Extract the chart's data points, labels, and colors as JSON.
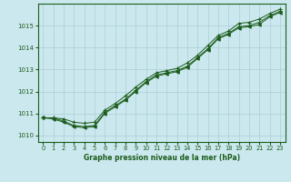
{
  "title": "Graphe pression niveau de la mer (hPa)",
  "background_color": "#cce8ef",
  "plot_background": "#cce8ef",
  "line_color": "#1a5c1a",
  "grid_color": "#aacdd6",
  "text_color": "#1a5c1a",
  "xlim": [
    -0.5,
    23.5
  ],
  "ylim": [
    1009.7,
    1016.0
  ],
  "yticks": [
    1010,
    1011,
    1012,
    1013,
    1014,
    1015
  ],
  "xticks": [
    0,
    1,
    2,
    3,
    4,
    5,
    6,
    7,
    8,
    9,
    10,
    11,
    12,
    13,
    14,
    15,
    16,
    17,
    18,
    19,
    20,
    21,
    22,
    23
  ],
  "series1_x": [
    0,
    1,
    2,
    3,
    4,
    5,
    6,
    7,
    8,
    9,
    10,
    11,
    12,
    13,
    14,
    15,
    16,
    17,
    18,
    19,
    20,
    21,
    22,
    23
  ],
  "series1_y": [
    1010.8,
    1010.8,
    1010.65,
    1010.45,
    1010.4,
    1010.45,
    1011.05,
    1011.35,
    1011.65,
    1012.05,
    1012.45,
    1012.75,
    1012.85,
    1012.95,
    1013.15,
    1013.55,
    1013.95,
    1014.45,
    1014.65,
    1014.95,
    1015.0,
    1015.15,
    1015.45,
    1015.65
  ],
  "series2_x": [
    0,
    1,
    2,
    3,
    4,
    5,
    6,
    7,
    8,
    9,
    10,
    11,
    12,
    13,
    14,
    15,
    16,
    17,
    18,
    19,
    20,
    21,
    22,
    23
  ],
  "series2_y": [
    1010.8,
    1010.75,
    1010.6,
    1010.4,
    1010.35,
    1010.4,
    1011.0,
    1011.3,
    1011.6,
    1012.0,
    1012.4,
    1012.7,
    1012.8,
    1012.9,
    1013.1,
    1013.5,
    1013.9,
    1014.4,
    1014.6,
    1014.9,
    1014.95,
    1015.05,
    1015.4,
    1015.6
  ],
  "series3_x": [
    0,
    1,
    2,
    3,
    4,
    5,
    6,
    7,
    8,
    9,
    10,
    11,
    12,
    13,
    14,
    15,
    16,
    17,
    18,
    19,
    20,
    21,
    22,
    23
  ],
  "series3_y": [
    1010.8,
    1010.8,
    1010.75,
    1010.6,
    1010.55,
    1010.6,
    1011.15,
    1011.45,
    1011.8,
    1012.2,
    1012.55,
    1012.85,
    1012.95,
    1013.05,
    1013.3,
    1013.65,
    1014.1,
    1014.55,
    1014.75,
    1015.1,
    1015.15,
    1015.3,
    1015.55,
    1015.75
  ]
}
